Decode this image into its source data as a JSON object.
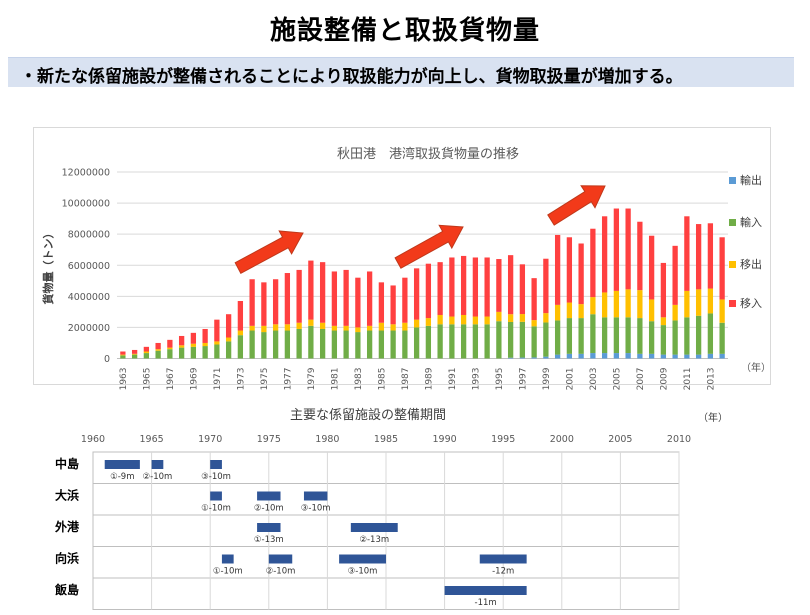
{
  "page": {
    "title": "施設整備と取扱貨物量",
    "bullet": "・新たな係留施設が整備されることにより取扱能力が向上し、貨物取扱量が増加する。"
  },
  "chart_data": [
    {
      "type": "bar",
      "stacked": true,
      "title": "秋田港　港湾取扱貨物量の推移",
      "ylabel": "貨物量（トン）",
      "xlabel": "（年）",
      "ylim": [
        0,
        12000000
      ],
      "yticks": [
        "0",
        "2000000",
        "4000000",
        "6000000",
        "8000000",
        "10000000",
        "12000000"
      ],
      "legend_position": "right",
      "grid": true,
      "categories": [
        "1963",
        "1964",
        "1965",
        "1966",
        "1967",
        "1968",
        "1969",
        "1970",
        "1971",
        "1972",
        "1973",
        "1974",
        "1975",
        "1976",
        "1977",
        "1978",
        "1979",
        "1980",
        "1981",
        "1982",
        "1983",
        "1984",
        "1985",
        "1986",
        "1987",
        "1988",
        "1989",
        "1990",
        "1991",
        "1992",
        "1993",
        "1994",
        "1995",
        "1996",
        "1997",
        "1998",
        "1999",
        "2000",
        "2001",
        "2002",
        "2003",
        "2004",
        "2005",
        "2006",
        "2007",
        "2008",
        "2009",
        "2010",
        "2011",
        "2012",
        "2013",
        "2014"
      ],
      "tick_labels": [
        "1963",
        "1965",
        "1967",
        "1969",
        "1971",
        "1973",
        "1975",
        "1977",
        "1979",
        "1981",
        "1983",
        "1985",
        "1987",
        "1989",
        "1991",
        "1993",
        "1995",
        "1997",
        "1999",
        "2001",
        "2003",
        "2005",
        "2007",
        "2009",
        "2011",
        "2013"
      ],
      "legend": [
        "輸出",
        "輸入",
        "移出",
        "移入"
      ],
      "series": [
        {
          "name": "輸出",
          "color": "#5b9bd5",
          "values": [
            0,
            0,
            0,
            0,
            0,
            0,
            0,
            0,
            0,
            0,
            0,
            0,
            0,
            0,
            0,
            0,
            0,
            0,
            0,
            0,
            0,
            0,
            0,
            0,
            0,
            0,
            0,
            0,
            0,
            0,
            0,
            0,
            0,
            50000,
            60000,
            70000,
            120000,
            250000,
            300000,
            300000,
            350000,
            350000,
            350000,
            350000,
            300000,
            300000,
            250000,
            250000,
            250000,
            250000,
            300000,
            300000
          ]
        },
        {
          "name": "輸入",
          "color": "#70ad47",
          "values": [
            200000,
            250000,
            350000,
            500000,
            600000,
            700000,
            750000,
            800000,
            900000,
            1100000,
            1500000,
            1800000,
            1700000,
            1800000,
            1800000,
            1900000,
            2100000,
            1900000,
            1800000,
            1800000,
            1700000,
            1800000,
            1800000,
            1800000,
            1800000,
            2000000,
            2100000,
            2200000,
            2200000,
            2200000,
            2200000,
            2200000,
            2400000,
            2300000,
            2300000,
            2000000,
            2200000,
            2200000,
            2300000,
            2300000,
            2500000,
            2300000,
            2300000,
            2300000,
            2300000,
            2100000,
            1900000,
            2200000,
            2400000,
            2500000,
            2600000,
            2000000
          ]
        },
        {
          "name": "移出",
          "color": "#ffc000",
          "values": [
            50000,
            50000,
            100000,
            100000,
            100000,
            150000,
            200000,
            200000,
            200000,
            250000,
            300000,
            300000,
            400000,
            400000,
            400000,
            400000,
            400000,
            400000,
            300000,
            300000,
            300000,
            300000,
            500000,
            400000,
            500000,
            500000,
            500000,
            600000,
            500000,
            600000,
            500000,
            500000,
            600000,
            500000,
            500000,
            400000,
            600000,
            1000000,
            1000000,
            900000,
            1100000,
            1600000,
            1700000,
            1800000,
            1800000,
            1400000,
            500000,
            1000000,
            1700000,
            1700000,
            1600000,
            1500000
          ]
        },
        {
          "name": "移入",
          "color": "#ff4040",
          "values": [
            200000,
            250000,
            300000,
            400000,
            500000,
            600000,
            700000,
            900000,
            1400000,
            1500000,
            1900000,
            3000000,
            2800000,
            2900000,
            3300000,
            3400000,
            3800000,
            3900000,
            3500000,
            3600000,
            3200000,
            3500000,
            2600000,
            2500000,
            2900000,
            3300000,
            3500000,
            3400000,
            3800000,
            3800000,
            3800000,
            3800000,
            3400000,
            3800000,
            3200000,
            2700000,
            3500000,
            4500000,
            4200000,
            3900000,
            4400000,
            4900000,
            5300000,
            5200000,
            4400000,
            4100000,
            3500000,
            3800000,
            4800000,
            4200000,
            4200000,
            4000000
          ]
        }
      ],
      "annotation": "increase arrows"
    },
    {
      "type": "timeline",
      "title": "主要な係留施設の整備期間",
      "unit": "（年）",
      "axis_ticks": [
        "1960",
        "1965",
        "1970",
        "1975",
        "1980",
        "1985",
        "1990",
        "1995",
        "2000",
        "2005",
        "2010"
      ],
      "axis_range": [
        1960,
        2010
      ],
      "rows": [
        {
          "name": "中島",
          "bars": [
            {
              "start": 1961,
              "end": 1964,
              "label": "①-9m"
            },
            {
              "start": 1965,
              "end": 1966,
              "label": "②-10m"
            },
            {
              "start": 1970,
              "end": 1971,
              "label": "③-10m"
            }
          ]
        },
        {
          "name": "大浜",
          "bars": [
            {
              "start": 1970,
              "end": 1971,
              "label": "①-10m"
            },
            {
              "start": 1974,
              "end": 1976,
              "label": "②-10m"
            },
            {
              "start": 1978,
              "end": 1980,
              "label": "③-10m"
            }
          ]
        },
        {
          "name": "外港",
          "bars": [
            {
              "start": 1974,
              "end": 1976,
              "label": "①-13m"
            },
            {
              "start": 1982,
              "end": 1986,
              "label": "②-13m"
            }
          ]
        },
        {
          "name": "向浜",
          "bars": [
            {
              "start": 1971,
              "end": 1972,
              "label": "①-10m"
            },
            {
              "start": 1975,
              "end": 1977,
              "label": "②-10m"
            },
            {
              "start": 1981,
              "end": 1985,
              "label": "③-10m"
            },
            {
              "start": 1993,
              "end": 1997,
              "label": "-12m"
            }
          ]
        },
        {
          "name": "飯島",
          "bars": [
            {
              "start": 1990,
              "end": 1997,
              "label": "-11m"
            }
          ]
        }
      ],
      "bar_color": "#2f5597"
    }
  ]
}
